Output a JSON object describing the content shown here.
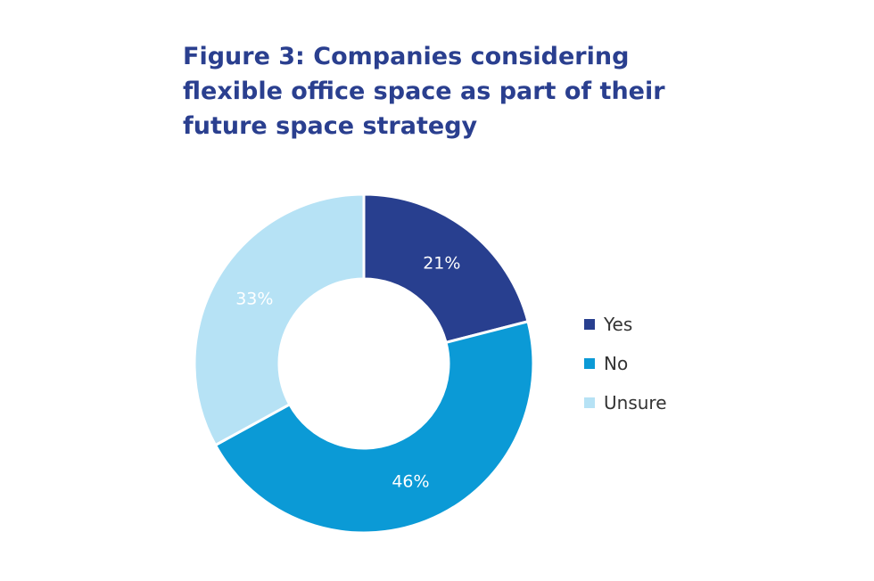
{
  "chart_data": {
    "type": "pie",
    "title_lines": [
      "Figure 3: Companies considering",
      "flexible office space as part of their",
      "future space strategy"
    ],
    "categories": [
      "Yes",
      "No",
      "Unsure"
    ],
    "values": [
      21,
      46,
      33
    ],
    "value_labels": [
      "21%",
      "46%",
      "33%"
    ],
    "colors": [
      "#283f8f",
      "#0b9ad6",
      "#b6e2f5"
    ],
    "legend": {
      "position": "right",
      "entries": [
        "Yes",
        "No",
        "Unsure"
      ]
    },
    "style": "donut"
  }
}
